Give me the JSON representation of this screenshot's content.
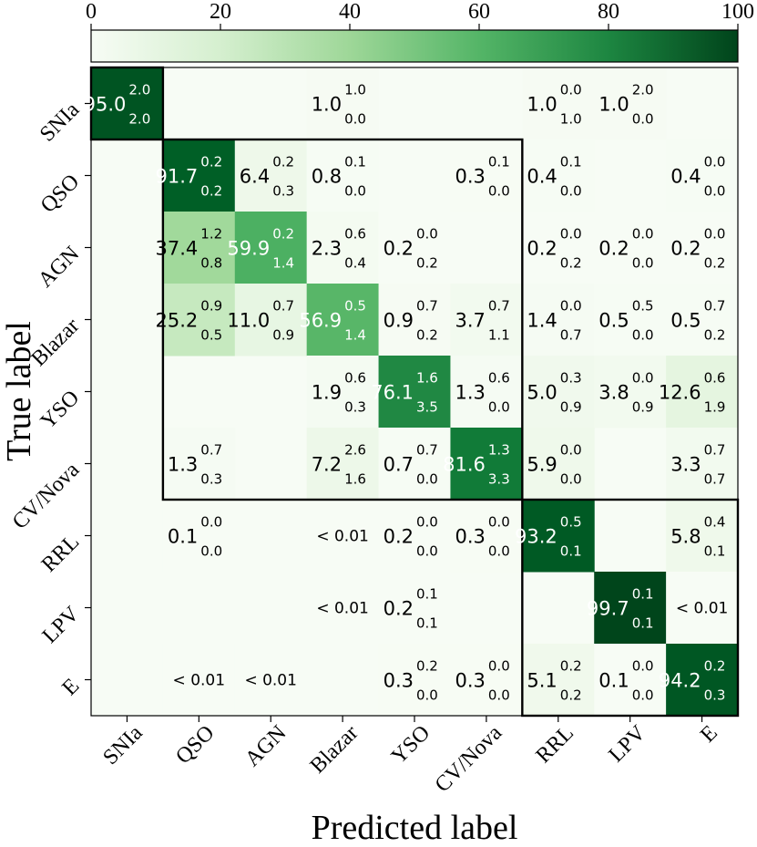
{
  "chart_data": {
    "type": "heatmap",
    "title": "",
    "xlabel": "Predicted label",
    "ylabel": "True label",
    "colorbar": {
      "min": 0,
      "max": 100,
      "ticks": [
        "0",
        "20",
        "40",
        "60",
        "80",
        "100"
      ],
      "placement": "top",
      "colormap": "Greens"
    },
    "categories": [
      "SNIa",
      "QSO",
      "AGN",
      "Blazar",
      "YSO",
      "CV/Nova",
      "RRL",
      "LPV",
      "E"
    ],
    "ytick_labels": [
      "SNIa",
      "QSO",
      "AGN",
      "Blazar",
      "YSO",
      "CV/Nova",
      "RRL",
      "LPV",
      "E"
    ],
    "xtick_labels": [
      "SNIa",
      "QSO",
      "AGN",
      "Blazar",
      "YSO",
      "CV/Nova",
      "RRL",
      "LPV",
      "E"
    ],
    "groups": [
      {
        "rows": [
          0,
          0
        ],
        "cols": [
          0,
          0
        ]
      },
      {
        "rows": [
          1,
          5
        ],
        "cols": [
          1,
          5
        ]
      },
      {
        "rows": [
          6,
          8
        ],
        "cols": [
          6,
          8
        ]
      }
    ],
    "cells": [
      [
        {
          "v": "95.0",
          "up": "2.0",
          "lo": "2.0",
          "n": 95.0
        },
        null,
        null,
        {
          "v": "1.0",
          "up": "1.0",
          "lo": "0.0",
          "n": 1.0
        },
        null,
        null,
        {
          "v": "1.0",
          "up": "0.0",
          "lo": "1.0",
          "n": 1.0
        },
        {
          "v": "1.0",
          "up": "2.0",
          "lo": "0.0",
          "n": 1.0
        },
        null
      ],
      [
        null,
        {
          "v": "91.7",
          "up": "0.2",
          "lo": "0.2",
          "n": 91.7
        },
        {
          "v": "6.4",
          "up": "0.2",
          "lo": "0.3",
          "n": 6.4
        },
        {
          "v": "0.8",
          "up": "0.1",
          "lo": "0.0",
          "n": 0.8
        },
        null,
        {
          "v": "0.3",
          "up": "0.1",
          "lo": "0.0",
          "n": 0.3
        },
        {
          "v": "0.4",
          "up": "0.1",
          "lo": "0.0",
          "n": 0.4
        },
        null,
        {
          "v": "0.4",
          "up": "0.0",
          "lo": "0.0",
          "n": 0.4
        }
      ],
      [
        null,
        {
          "v": "37.4",
          "up": "1.2",
          "lo": "0.8",
          "n": 37.4
        },
        {
          "v": "59.9",
          "up": "0.2",
          "lo": "1.4",
          "n": 59.9
        },
        {
          "v": "2.3",
          "up": "0.6",
          "lo": "0.4",
          "n": 2.3
        },
        {
          "v": "0.2",
          "up": "0.0",
          "lo": "0.2",
          "n": 0.2
        },
        null,
        {
          "v": "0.2",
          "up": "0.0",
          "lo": "0.2",
          "n": 0.2
        },
        {
          "v": "0.2",
          "up": "0.0",
          "lo": "0.0",
          "n": 0.2
        },
        {
          "v": "0.2",
          "up": "0.0",
          "lo": "0.2",
          "n": 0.2
        }
      ],
      [
        null,
        {
          "v": "25.2",
          "up": "0.9",
          "lo": "0.5",
          "n": 25.2
        },
        {
          "v": "11.0",
          "up": "0.7",
          "lo": "0.9",
          "n": 11.0
        },
        {
          "v": "56.9",
          "up": "0.5",
          "lo": "1.4",
          "n": 56.9
        },
        {
          "v": "0.9",
          "up": "0.7",
          "lo": "0.2",
          "n": 0.9
        },
        {
          "v": "3.7",
          "up": "0.7",
          "lo": "1.1",
          "n": 3.7
        },
        {
          "v": "1.4",
          "up": "0.0",
          "lo": "0.7",
          "n": 1.4
        },
        {
          "v": "0.5",
          "up": "0.5",
          "lo": "0.0",
          "n": 0.5
        },
        {
          "v": "0.5",
          "up": "0.7",
          "lo": "0.2",
          "n": 0.5
        }
      ],
      [
        null,
        null,
        null,
        {
          "v": "1.9",
          "up": "0.6",
          "lo": "0.3",
          "n": 1.9
        },
        {
          "v": "76.1",
          "up": "1.6",
          "lo": "3.5",
          "n": 76.1
        },
        {
          "v": "1.3",
          "up": "0.6",
          "lo": "0.0",
          "n": 1.3
        },
        {
          "v": "5.0",
          "up": "0.3",
          "lo": "0.9",
          "n": 5.0
        },
        {
          "v": "3.8",
          "up": "0.0",
          "lo": "0.9",
          "n": 3.8
        },
        {
          "v": "12.6",
          "up": "0.6",
          "lo": "1.9",
          "n": 12.6
        }
      ],
      [
        null,
        {
          "v": "1.3",
          "up": "0.7",
          "lo": "0.3",
          "n": 1.3
        },
        null,
        {
          "v": "7.2",
          "up": "2.6",
          "lo": "1.6",
          "n": 7.2
        },
        {
          "v": "0.7",
          "up": "0.7",
          "lo": "0.0",
          "n": 0.7
        },
        {
          "v": "81.6",
          "up": "1.3",
          "lo": "3.3",
          "n": 81.6
        },
        {
          "v": "5.9",
          "up": "0.0",
          "lo": "0.0",
          "n": 5.9
        },
        null,
        {
          "v": "3.3",
          "up": "0.7",
          "lo": "0.7",
          "n": 3.3
        }
      ],
      [
        null,
        {
          "v": "0.1",
          "up": "0.0",
          "lo": "0.0",
          "n": 0.1
        },
        null,
        {
          "v": "< 0.01",
          "n": 0.005
        },
        {
          "v": "0.2",
          "up": "0.0",
          "lo": "0.0",
          "n": 0.2
        },
        {
          "v": "0.3",
          "up": "0.0",
          "lo": "0.0",
          "n": 0.3
        },
        {
          "v": "93.2",
          "up": "0.5",
          "lo": "0.1",
          "n": 93.2
        },
        null,
        {
          "v": "5.8",
          "up": "0.4",
          "lo": "0.1",
          "n": 5.8
        }
      ],
      [
        null,
        null,
        null,
        {
          "v": "< 0.01",
          "n": 0.005
        },
        {
          "v": "0.2",
          "up": "0.1",
          "lo": "0.1",
          "n": 0.2
        },
        null,
        null,
        {
          "v": "99.7",
          "up": "0.1",
          "lo": "0.1",
          "n": 99.7
        },
        {
          "v": "< 0.01",
          "n": 0.005
        }
      ],
      [
        null,
        {
          "v": "< 0.01",
          "n": 0.005
        },
        {
          "v": "< 0.01",
          "n": 0.005
        },
        null,
        {
          "v": "0.3",
          "up": "0.2",
          "lo": "0.0",
          "n": 0.3
        },
        {
          "v": "0.3",
          "up": "0.0",
          "lo": "0.0",
          "n": 0.3
        },
        {
          "v": "5.1",
          "up": "0.2",
          "lo": "0.2",
          "n": 5.1
        },
        {
          "v": "0.1",
          "up": "0.0",
          "lo": "0.0",
          "n": 0.1
        },
        {
          "v": "94.2",
          "up": "0.2",
          "lo": "0.3",
          "n": 94.2
        }
      ]
    ]
  }
}
